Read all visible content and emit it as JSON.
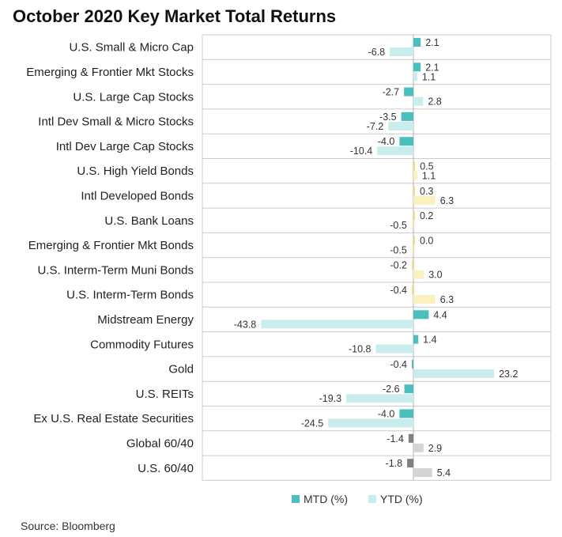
{
  "title": "October 2020 Key Market Total Returns",
  "source": "Source: Bloomberg",
  "chart_data": {
    "type": "bar",
    "orientation": "horizontal",
    "title": "October 2020 Key Market Total Returns",
    "xlim": [
      -45,
      35
    ],
    "grid": "horizontal row lines",
    "legend_position": "bottom",
    "categories": [
      "U.S. Small & Micro Cap",
      "Emerging & Frontier Mkt Stocks",
      "U.S. Large Cap Stocks",
      "Intl Dev Small & Micro Stocks",
      "Intl Dev Large Cap Stocks",
      "U.S. High Yield Bonds",
      "Intl Developed Bonds",
      "U.S. Bank Loans",
      "Emerging & Frontier Mkt Bonds",
      "U.S. Interm-Term Muni Bonds",
      "U.S. Interm-Term Bonds",
      "Midstream Energy",
      "Commodity Futures",
      "Gold",
      "U.S. REITs",
      "Ex U.S. Real Estate Securities",
      "Global 60/40",
      "U.S. 60/40"
    ],
    "groups": [
      "stocks",
      "stocks",
      "stocks",
      "stocks",
      "stocks",
      "bonds",
      "bonds",
      "bonds",
      "bonds",
      "bonds",
      "bonds",
      "real",
      "real",
      "real",
      "real",
      "real",
      "balanced",
      "balanced"
    ],
    "series": [
      {
        "name": "MTD (%)",
        "values": [
          2.1,
          2.1,
          -2.7,
          -3.5,
          -4.0,
          0.5,
          0.3,
          0.2,
          0.0,
          -0.2,
          -0.4,
          4.4,
          1.4,
          -0.4,
          -2.6,
          -4.0,
          -1.4,
          -1.8
        ]
      },
      {
        "name": "YTD (%)",
        "values": [
          -6.8,
          1.1,
          2.8,
          -7.2,
          -10.4,
          1.1,
          6.3,
          -0.5,
          -0.5,
          3.0,
          6.3,
          -43.8,
          -10.8,
          23.2,
          -19.3,
          -24.5,
          2.9,
          5.4
        ]
      }
    ],
    "value_labels": {
      "mtd": [
        "2.1",
        "2.1",
        "-2.7",
        "-3.5",
        "-4.0",
        "0.5",
        "0.3",
        "0.2",
        "0.0",
        "-0.2",
        "-0.4",
        "4.4",
        "1.4",
        "-0.4",
        "-2.6",
        "-4.0",
        "-1.4",
        "-1.8"
      ],
      "ytd": [
        "-6.8",
        "1.1",
        "2.8",
        "-7.2",
        "-10.4",
        "1.1",
        "6.3",
        "-0.5",
        "-0.5",
        "3.0",
        "6.3",
        "-43.8",
        "-10.8",
        "23.2",
        "-19.3",
        "-24.5",
        "2.9",
        "5.4"
      ]
    },
    "colors": {
      "stocks": {
        "mtd": "#4bbfbd",
        "ytd": "#c9ecec"
      },
      "bonds": {
        "mtd": "#f3dd7a",
        "ytd": "#faf0c0"
      },
      "real": {
        "mtd": "#4bbfbd",
        "ytd": "#c9ecec"
      },
      "balanced": {
        "mtd": "#808080",
        "ytd": "#d4d4d4"
      },
      "legend_mtd": "#4bbfbd",
      "legend_ytd": "#c9ecec",
      "grid": "#cccccc",
      "axis": "#b0b0b0"
    }
  }
}
